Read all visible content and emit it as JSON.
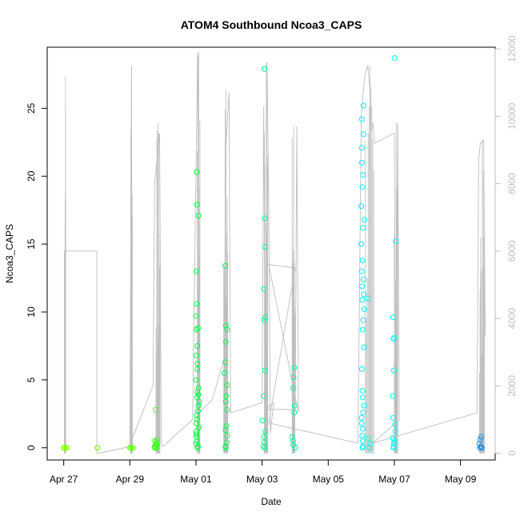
{
  "chart_data": {
    "type": "scatter",
    "title": "ATOM4 Southbound Ncoa3_CAPS",
    "xlabel": "Date",
    "ylabel": "Ncoa3_CAPS",
    "x_ticks": [
      "Apr 27",
      "Apr 29",
      "May 01",
      "May 03",
      "May 05",
      "May 07",
      "May 09"
    ],
    "x_tick_days": [
      0,
      2,
      4,
      6,
      8,
      10,
      12
    ],
    "xlim_days": [
      -0.5,
      13.05
    ],
    "ylim": [
      -0.9,
      29.5
    ],
    "y_ticks": [
      0,
      5,
      10,
      15,
      20,
      25
    ],
    "y2lim": [
      -200,
      12050
    ],
    "y2_ticks": [
      0,
      2000,
      4000,
      6000,
      8000,
      10000,
      12000
    ],
    "grid": false,
    "line_color": "#bebebe",
    "line_series_note": "secondary-axis grey trace",
    "line": [
      [
        0.02,
        0
      ],
      [
        0.02,
        6000
      ],
      [
        1.0,
        6000
      ],
      [
        1.0,
        0
      ],
      [
        1.05,
        0
      ],
      [
        2.0,
        200
      ],
      [
        2.05,
        11500
      ],
      [
        2.06,
        400
      ],
      [
        2.7,
        2000
      ],
      [
        2.75,
        8000
      ],
      [
        2.9,
        9500
      ],
      [
        2.95,
        300
      ],
      [
        3.0,
        200
      ],
      [
        3.9,
        1000
      ],
      [
        4.05,
        11900
      ],
      [
        4.1,
        1200
      ],
      [
        4.5,
        1600
      ],
      [
        4.85,
        2800
      ],
      [
        4.9,
        9000
      ],
      [
        5.0,
        10700
      ],
      [
        5.05,
        1200
      ],
      [
        6.0,
        1500
      ],
      [
        6.05,
        10300
      ],
      [
        6.1,
        1400
      ],
      [
        6.15,
        11600
      ],
      [
        6.2,
        7500
      ],
      [
        6.25,
        600
      ],
      [
        6.35,
        1500
      ],
      [
        6.1,
        1300
      ],
      [
        7.0,
        1300
      ],
      [
        7.05,
        9700
      ],
      [
        7.1,
        1200
      ],
      [
        6.2,
        5600
      ],
      [
        7.0,
        5500
      ],
      [
        6.2,
        900
      ],
      [
        8.9,
        300
      ],
      [
        9.0,
        10000
      ],
      [
        9.1,
        11200
      ],
      [
        9.2,
        11500
      ],
      [
        9.25,
        10900
      ],
      [
        9.3,
        9600
      ],
      [
        9.35,
        9800
      ],
      [
        9.4,
        9200
      ],
      [
        10.0,
        9500
      ],
      [
        10.05,
        200
      ],
      [
        10.1,
        9800
      ],
      [
        10.15,
        1000
      ],
      [
        9.35,
        300
      ],
      [
        12.5,
        1200
      ],
      [
        12.55,
        8700
      ],
      [
        12.6,
        9200
      ],
      [
        12.7,
        9300
      ],
      [
        12.75,
        3500
      ]
    ],
    "spike_clusters": [
      {
        "day": 0.05,
        "max": 11200,
        "width": 0.02
      },
      {
        "day": 2.05,
        "max": 11500,
        "width": 0.05
      },
      {
        "day": 2.85,
        "max": 9800,
        "width": 0.12
      },
      {
        "day": 4.08,
        "max": 11900,
        "width": 0.08
      },
      {
        "day": 4.9,
        "max": 10800,
        "width": 0.12
      },
      {
        "day": 6.12,
        "max": 11600,
        "width": 0.1
      },
      {
        "day": 6.95,
        "max": 9700,
        "width": 0.08
      },
      {
        "day": 9.25,
        "max": 11500,
        "width": 0.25
      },
      {
        "day": 10.05,
        "max": 9800,
        "width": 0.1
      },
      {
        "day": 12.65,
        "max": 9300,
        "width": 0.15
      }
    ],
    "point_clusters": [
      {
        "day": 0.05,
        "color": "#7fff00",
        "values": [
          0,
          0,
          0,
          0,
          0,
          0
        ]
      },
      {
        "day": 1.0,
        "color": "#7fff00",
        "values": [
          0,
          0,
          0
        ]
      },
      {
        "day": 2.05,
        "color": "#5fff00",
        "values": [
          0,
          0,
          0,
          0,
          0
        ]
      },
      {
        "day": 2.8,
        "color": "#40ff20",
        "values": [
          0,
          0.1,
          0.3,
          0.6,
          0.2,
          0,
          0.4,
          0.5,
          2.8,
          0,
          0.1,
          0.2
        ]
      },
      {
        "day": 4.05,
        "color": "#00ff40",
        "values": [
          20.3,
          17.9,
          17.1,
          13.0,
          10.6,
          9.7,
          8.8,
          8.7,
          7.5,
          6.8,
          6.2,
          5.8,
          5.0,
          4.4,
          4.1,
          3.9,
          3.7,
          3.4,
          3.1,
          2.7,
          2.4,
          2.1,
          1.8,
          1.5,
          1.2,
          1.0,
          0.8,
          0.5,
          0.3,
          0.1,
          0
        ]
      },
      {
        "day": 4.9,
        "color": "#00ff50",
        "values": [
          13.4,
          9.0,
          8.7,
          7.8,
          6.3,
          5.5,
          4.6,
          3.8,
          3.4,
          2.8,
          1.6,
          1.3,
          0.9,
          0.4,
          0.1,
          0
        ]
      },
      {
        "day": 6.05,
        "color": "#00ff90",
        "values": [
          27.9,
          16.9,
          14.8,
          11.7,
          9.6,
          9.4,
          5.7,
          3.8,
          2.0,
          1.2,
          0.8,
          0.4,
          0.1,
          0
        ]
      },
      {
        "day": 6.95,
        "color": "#00ffa0",
        "values": [
          5.9,
          5.2,
          4.4,
          3.1,
          2.6,
          0.8,
          0.5,
          0.2,
          0
        ]
      },
      {
        "day": 9.05,
        "color": "#00f0ff",
        "values": [
          25.2,
          24.2,
          23.1,
          22.1,
          21.0,
          20.1,
          19.2,
          17.8,
          16.8,
          16.2,
          15.0,
          13.8,
          13.0,
          12.4,
          11.9,
          11.3,
          10.9,
          10.2,
          9.4,
          8.7,
          7.4,
          5.8,
          4.2,
          3.7,
          3.1,
          2.6,
          2.2,
          1.8,
          1.4,
          0.9,
          0.5,
          0.1,
          0
        ]
      },
      {
        "day": 9.25,
        "color": "#00ffe0",
        "values": [
          11.0,
          0.7,
          0.3,
          0
        ]
      },
      {
        "day": 10.0,
        "color": "#00ffff",
        "values": [
          28.7,
          15.2,
          9.6,
          8.1,
          8.0,
          5.7,
          3.8,
          2.2,
          1.7,
          1.2,
          0.7,
          0.5,
          0.3,
          0.1,
          0
        ]
      },
      {
        "day": 12.6,
        "color": "#1a8fe6",
        "values": [
          0.8,
          0.6,
          0.3,
          0.1,
          0,
          0,
          0,
          0
        ]
      }
    ]
  }
}
